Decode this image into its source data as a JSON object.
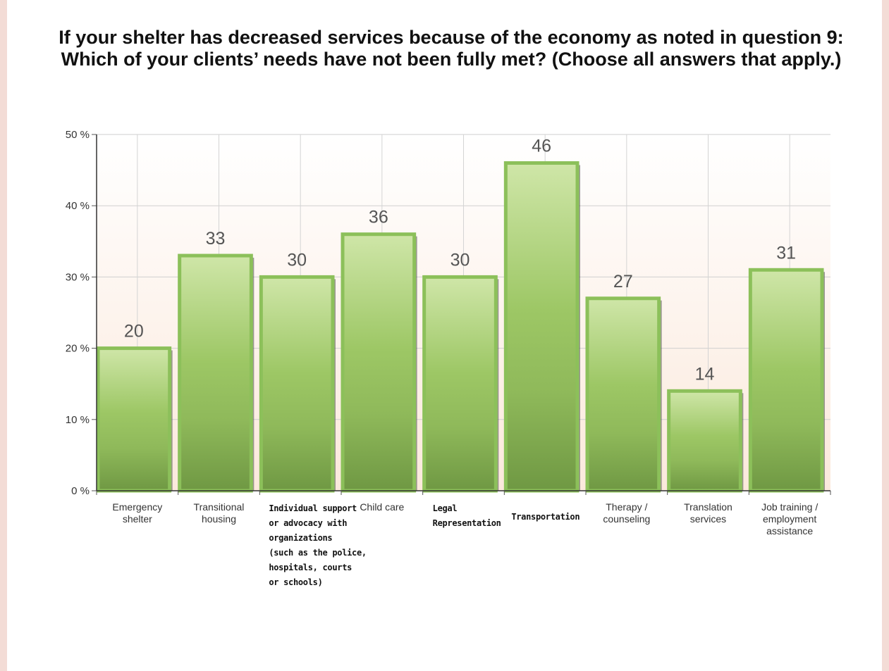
{
  "chart_data": {
    "type": "bar",
    "title": "If your shelter has decreased services because of the economy as noted in question 9: Which of your clients’ needs have not been fully met? (Choose all answers that apply.)",
    "categories": [
      "Emergency\nshelter",
      "Transitional\nhousing",
      "Individual support\nor advocacy with\norganizations\n(such as the police,\nhospitals, courts\nor schools)",
      "Child care",
      "Legal\nRepresentation",
      "Transportation",
      "Therapy /\ncounseling",
      "Translation\nservices",
      "Job training /\nemployment\nassistance"
    ],
    "values": [
      20,
      33,
      30,
      36,
      30,
      46,
      27,
      14,
      31
    ],
    "data_labels": [
      "20",
      "33",
      "30",
      "36",
      "30",
      "46",
      "27",
      "14",
      "31"
    ],
    "ylim": [
      0,
      50
    ],
    "yticks": [
      "0 %",
      "10 %",
      "20 %",
      "30 %",
      "40 %",
      "50 %"
    ],
    "xlabel": "",
    "ylabel": "",
    "grid": true,
    "colors": {
      "bar_light": "#cfe6a8",
      "bar_mid": "#9dc765",
      "bar_dark": "#6f9843",
      "bar_border": "#8cc05a",
      "plot_bg_bottom": "#fbe9dc"
    }
  }
}
